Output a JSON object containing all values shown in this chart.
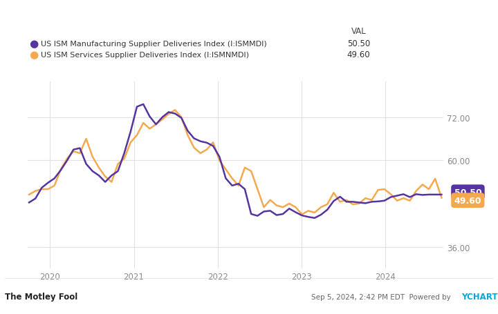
{
  "legend_line1": "US ISM Manufacturing Supplier Deliveries Index (I:ISMMDI)",
  "legend_line2": "US ISM Services Supplier Deliveries Index (I:ISMNMDI)",
  "val_label": "VAL",
  "val1": "50.50",
  "val2": "49.60",
  "color1": "#5533a0",
  "color2": "#f5a94e",
  "background_color": "#ffffff",
  "plot_bg_color": "#ffffff",
  "grid_color": "#e0e0e0",
  "yticks": [
    36.0,
    60.0,
    72.0
  ],
  "ytick_labels": [
    "36.00",
    "60.00",
    "72.00"
  ],
  "ylim": [
    30,
    82
  ],
  "xlabel_ticks": [
    "2020",
    "2021",
    "2022",
    "2023",
    "2024"
  ],
  "year_positions": [
    2020,
    2021,
    2022,
    2023,
    2024
  ],
  "footer_left": "The Motley Fool",
  "footer_right": "Sep 5, 2024, 2:42 PM EDT Powered by YCHARTS",
  "series1": [
    48.3,
    49.4,
    52.4,
    53.8,
    55.0,
    57.3,
    60.0,
    63.0,
    63.4,
    59.0,
    57.0,
    55.8,
    54.0,
    55.8,
    57.0,
    62.0,
    68.0,
    74.9,
    75.6,
    72.2,
    70.0,
    72.0,
    73.4,
    73.0,
    71.8,
    68.2,
    66.1,
    65.3,
    64.9,
    64.0,
    61.0,
    55.0,
    53.0,
    53.5,
    52.0,
    45.1,
    44.6,
    45.8,
    46.0,
    44.8,
    45.1,
    46.6,
    45.6,
    44.7,
    44.3,
    44.0,
    44.9,
    46.3,
    48.7,
    49.9,
    48.5,
    48.5,
    48.3,
    48.1,
    48.5,
    48.6,
    48.8,
    49.8,
    50.2,
    50.6,
    49.8,
    50.6,
    50.4,
    50.5,
    50.5,
    50.5
  ],
  "series2": [
    50.5,
    51.5,
    52.0,
    52.0,
    53.0,
    57.5,
    60.5,
    62.5,
    62.0,
    66.0,
    61.0,
    58.0,
    55.5,
    54.0,
    59.0,
    60.5,
    65.0,
    67.0,
    70.4,
    68.8,
    70.0,
    71.4,
    72.9,
    74.0,
    72.0,
    67.0,
    63.5,
    62.0,
    63.0,
    65.0,
    60.0,
    57.5,
    55.0,
    53.0,
    58.0,
    57.0,
    52.0,
    47.0,
    49.0,
    47.5,
    47.0,
    48.0,
    47.0,
    45.0,
    46.0,
    45.5,
    47.0,
    47.8,
    51.0,
    48.5,
    49.0,
    47.8,
    48.0,
    49.5,
    49.0,
    51.8,
    52.0,
    50.6,
    48.8,
    49.5,
    48.8,
    51.5,
    53.3,
    52.0,
    54.9,
    49.6
  ],
  "n_points": 66,
  "start_year": 2019.75,
  "end_year": 2024.67
}
